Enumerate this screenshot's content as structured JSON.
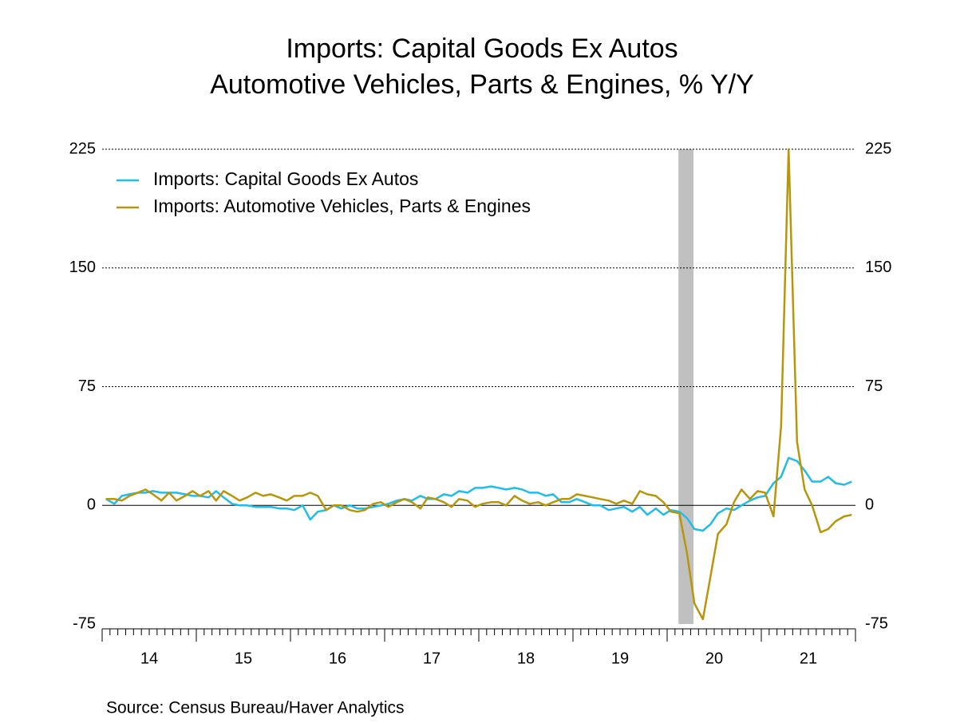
{
  "chart_data": {
    "type": "line",
    "title": "Imports: Capital Goods Ex Autos",
    "subtitle": "Automotive Vehicles, Parts & Engines, % Y/Y",
    "source": "Source:  Census Bureau/Haver Analytics",
    "xlim": [
      2014,
      2022
    ],
    "xticks": [
      {
        "value": 2014.5,
        "label": "14"
      },
      {
        "value": 2015.5,
        "label": "15"
      },
      {
        "value": 2016.5,
        "label": "16"
      },
      {
        "value": 2017.5,
        "label": "17"
      },
      {
        "value": 2018.5,
        "label": "18"
      },
      {
        "value": 2019.5,
        "label": "19"
      },
      {
        "value": 2020.5,
        "label": "20"
      },
      {
        "value": 2021.5,
        "label": "21"
      }
    ],
    "ylim": [
      -75,
      225
    ],
    "yticks": [
      -75,
      0,
      75,
      150,
      225
    ],
    "grid": true,
    "legend": "upper left",
    "shading": [
      2020.12,
      2020.28
    ],
    "x": [
      2014.04,
      2014.13,
      2014.21,
      2014.29,
      2014.38,
      2014.46,
      2014.54,
      2014.63,
      2014.71,
      2014.79,
      2014.88,
      2014.96,
      2015.04,
      2015.13,
      2015.21,
      2015.29,
      2015.38,
      2015.46,
      2015.54,
      2015.63,
      2015.71,
      2015.79,
      2015.88,
      2015.96,
      2016.04,
      2016.13,
      2016.21,
      2016.29,
      2016.38,
      2016.46,
      2016.54,
      2016.63,
      2016.71,
      2016.79,
      2016.88,
      2016.96,
      2017.04,
      2017.13,
      2017.21,
      2017.29,
      2017.38,
      2017.46,
      2017.54,
      2017.63,
      2017.71,
      2017.79,
      2017.88,
      2017.96,
      2018.04,
      2018.13,
      2018.21,
      2018.29,
      2018.38,
      2018.46,
      2018.54,
      2018.63,
      2018.71,
      2018.79,
      2018.88,
      2018.96,
      2019.04,
      2019.13,
      2019.21,
      2019.29,
      2019.38,
      2019.46,
      2019.54,
      2019.63,
      2019.71,
      2019.79,
      2019.88,
      2019.96,
      2020.04,
      2020.13,
      2020.21,
      2020.29,
      2020.38,
      2020.46,
      2020.54,
      2020.63,
      2020.71,
      2020.79,
      2020.88,
      2020.96,
      2021.04,
      2021.13,
      2021.21,
      2021.29,
      2021.38,
      2021.46,
      2021.54,
      2021.63,
      2021.71,
      2021.79,
      2021.88,
      2021.96
    ],
    "series": [
      {
        "name": "Imports: Capital Goods Ex Autos",
        "color": "#1fbde8",
        "values": [
          4,
          1,
          6,
          7,
          8,
          8,
          9,
          8,
          8,
          8,
          7,
          6,
          6,
          5,
          9,
          5,
          1,
          0,
          0,
          -1,
          -1,
          -1,
          -2,
          -2,
          -3,
          0,
          -9,
          -4,
          -3,
          0,
          -2,
          0,
          -2,
          -2,
          -1,
          0,
          1,
          3,
          4,
          3,
          6,
          4,
          4,
          7,
          6,
          9,
          8,
          11,
          11,
          12,
          11,
          10,
          11,
          10,
          8,
          8,
          6,
          7,
          2,
          2,
          4,
          2,
          0,
          0,
          -3,
          -2,
          -1,
          -4,
          -1,
          -6,
          -2,
          -6,
          -3,
          -4,
          -8,
          -15,
          -16,
          -12,
          -5,
          -2,
          -3,
          0,
          3,
          5,
          6,
          14,
          18,
          30,
          28,
          22,
          15,
          15,
          18,
          14,
          13,
          15
        ]
      },
      {
        "name": "Imports: Automotive Vehicles, Parts & Engines",
        "color": "#b8960c",
        "values": [
          4,
          4,
          3,
          6,
          8,
          10,
          7,
          3,
          8,
          3,
          6,
          9,
          6,
          9,
          3,
          9,
          6,
          3,
          5,
          8,
          6,
          7,
          5,
          3,
          6,
          6,
          8,
          6,
          -3,
          0,
          0,
          -3,
          -4,
          -3,
          1,
          2,
          -1,
          2,
          4,
          2,
          -2,
          5,
          4,
          2,
          -1,
          4,
          3,
          -1,
          1,
          2,
          2,
          0,
          6,
          3,
          1,
          2,
          0,
          2,
          4,
          4,
          7,
          6,
          5,
          4,
          3,
          1,
          3,
          1,
          9,
          7,
          6,
          2,
          -4,
          -5,
          -30,
          -62,
          -72,
          -45,
          -18,
          -12,
          2,
          10,
          4,
          9,
          8,
          -7,
          50,
          225,
          40,
          10,
          0,
          -17,
          -15,
          -10,
          -7,
          -6
        ]
      }
    ]
  }
}
